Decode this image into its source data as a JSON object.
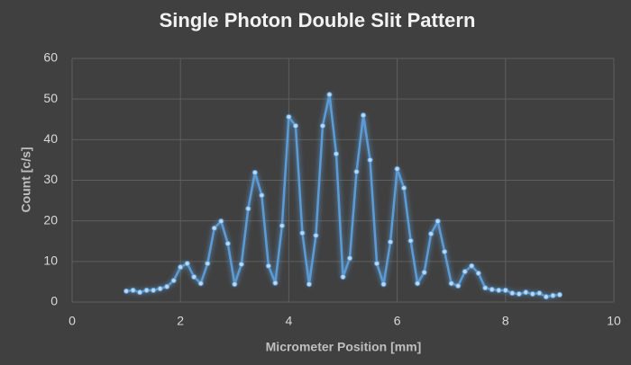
{
  "chart_data": {
    "type": "line",
    "title": "Single Photon Double Slit Pattern",
    "x_label": "Micrometer Position [mm]",
    "y_label": "Count [c/s]",
    "x": [
      1,
      1.125,
      1.25,
      1.375,
      1.5,
      1.625,
      1.75,
      1.875,
      2,
      2.125,
      2.25,
      2.375,
      2.5,
      2.625,
      2.75,
      2.875,
      3,
      3.125,
      3.25,
      3.375,
      3.5,
      3.625,
      3.75,
      3.875,
      4,
      4.125,
      4.25,
      4.375,
      4.5,
      4.625,
      4.75,
      4.875,
      5,
      5.125,
      5.25,
      5.375,
      5.5,
      5.625,
      5.75,
      5.875,
      6,
      6.125,
      6.25,
      6.375,
      6.5,
      6.625,
      6.75,
      6.875,
      7,
      7.125,
      7.25,
      7.375,
      7.5,
      7.625,
      7.75,
      7.875,
      8,
      8.125,
      8.25,
      8.375,
      8.5,
      8.625,
      8.75,
      8.875,
      9
    ],
    "values": [
      2.7,
      2.9,
      2.4,
      2.9,
      2.9,
      3.3,
      3.8,
      5.3,
      8.6,
      9.5,
      6.2,
      4.6,
      9.5,
      18.2,
      19.9,
      14.4,
      4.4,
      9.3,
      23.0,
      31.9,
      26.3,
      8.9,
      4.7,
      18.8,
      45.6,
      43.4,
      17.0,
      4.4,
      16.4,
      43.4,
      51.1,
      36.5,
      6.2,
      10.8,
      32.1,
      46.0,
      35.0,
      9.5,
      4.4,
      14.8,
      32.8,
      28.1,
      15.1,
      4.6,
      7.3,
      16.8,
      19.9,
      12.4,
      4.6,
      4.0,
      7.5,
      8.9,
      7.1,
      3.5,
      3.1,
      2.9,
      2.9,
      2.2,
      2.0,
      2.4,
      2.0,
      2.2,
      1.3,
      1.6,
      1.8
    ],
    "color": "#5b9bd5",
    "xlim": [
      0,
      10
    ],
    "xticks": [
      0,
      2,
      4,
      6,
      8,
      10
    ],
    "ylim": [
      0,
      60
    ],
    "yticks": [
      0,
      10,
      20,
      30,
      40,
      50,
      60
    ],
    "grid": true
  }
}
